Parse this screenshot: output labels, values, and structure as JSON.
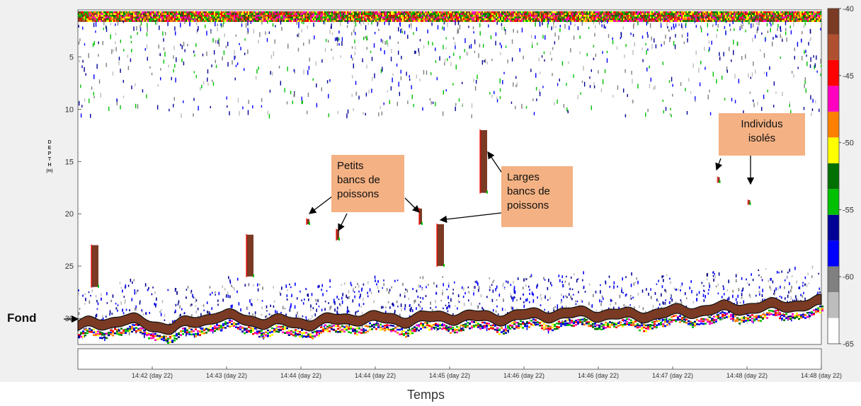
{
  "chart_data": {
    "type": "heatmap",
    "title": "",
    "xlabel": "Temps",
    "ylabel": "DEPTH",
    "ylabel_unit": "(m)",
    "y_axis": {
      "ticks": [
        5,
        10,
        15,
        20,
        25,
        30
      ],
      "ylim": [
        0.5,
        32.5
      ],
      "inverted": true
    },
    "x_axis": {
      "ticks": [
        "14:42 (day 22)",
        "14:43 (day 22)",
        "14:44 (day 22)",
        "14:44 (day 22)",
        "14:45 (day 22)",
        "14:46 (day 22)",
        "14:46 (day 22)",
        "14:47 (day 22)",
        "14:48 (day 22)",
        "14:48 (day 22)"
      ]
    },
    "colorbar": {
      "ticks": [
        -40,
        -45,
        -50,
        -55,
        -60,
        -65
      ],
      "range": [
        -65,
        -40
      ],
      "colors": [
        "#ffffff",
        "#bdbdbd",
        "#808080",
        "#0000ff",
        "#000096",
        "#00c000",
        "#007000",
        "#ffff00",
        "#ff8000",
        "#ff00c0",
        "#ff0000",
        "#b05030",
        "#7a3a24"
      ]
    },
    "bottom_depth_m": [
      30.6,
      30.0,
      30.8,
      29.6,
      30.2,
      30.3,
      29.8,
      30.0,
      29.7,
      29.8,
      29.5,
      29.4,
      29.6,
      29.2,
      28.9,
      28.7,
      28.4
    ],
    "schools": [
      {
        "depth_top": 23,
        "depth_bottom": 27,
        "size": "large"
      },
      {
        "depth_top": 12,
        "depth_bottom": 18,
        "size": "large"
      },
      {
        "depth_top": 21,
        "depth_bottom": 25,
        "size": "large"
      },
      {
        "depth_top": 22,
        "depth_bottom": 26,
        "size": "large"
      },
      {
        "depth_top": 20.5,
        "depth_bottom": 21,
        "size": "small"
      },
      {
        "depth_top": 21.5,
        "depth_bottom": 22.5,
        "size": "small"
      },
      {
        "depth_top": 19.5,
        "depth_bottom": 21,
        "size": "small"
      },
      {
        "depth_top": 16.5,
        "depth_bottom": 17,
        "size": "single"
      },
      {
        "depth_top": 18.7,
        "depth_bottom": 19.1,
        "size": "single"
      }
    ]
  },
  "annotations": {
    "petits": "Petits\nbancs de\npoissons",
    "larges": "Larges\nbancs de\npoissons",
    "individus": "Individus\nisolés",
    "fond": "Fond"
  },
  "colors": {
    "bottom": "#7a3a24",
    "callout": "#f4b183",
    "arrow": "#000000"
  }
}
